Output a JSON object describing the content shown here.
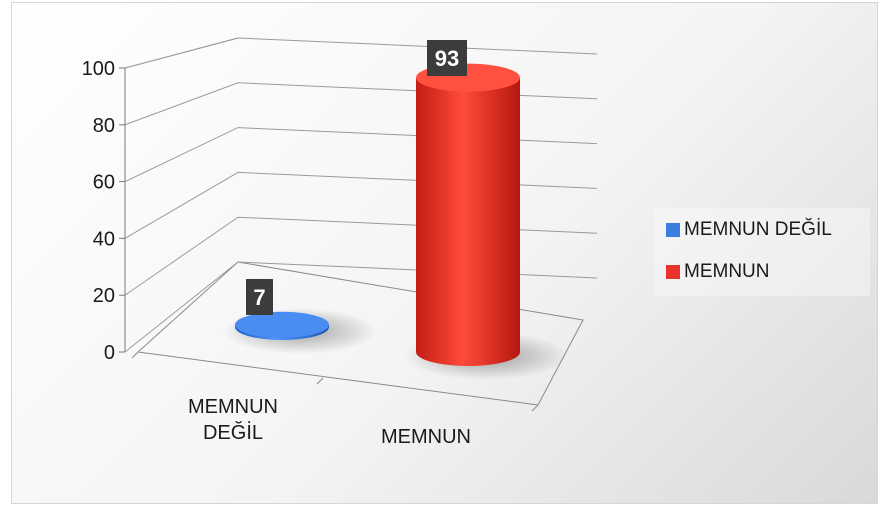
{
  "chart_data": {
    "type": "bar",
    "shape": "cylinder-3d",
    "categories": [
      "MEMNUN\nDEĞİL",
      "MEMNUN"
    ],
    "values": [
      7,
      93
    ],
    "series": [
      {
        "name": "MEMNUN DEĞİL",
        "values": [
          7,
          null
        ],
        "color": "#3b7de0"
      },
      {
        "name": "MEMNUN",
        "values": [
          null,
          93
        ],
        "color": "#e8342a"
      }
    ],
    "data_labels": [
      "7",
      "93"
    ],
    "yticks": [
      "0",
      "20",
      "40",
      "60",
      "80",
      "100"
    ],
    "ylim": [
      0,
      100
    ],
    "title": "",
    "xlabel": "",
    "ylabel": "",
    "grid": true,
    "legend_position": "right"
  },
  "legend": {
    "items": [
      {
        "label": "MEMNUN DEĞİL",
        "color": "#3b7de0"
      },
      {
        "label": "MEMNUN",
        "color": "#e8342a"
      }
    ]
  }
}
